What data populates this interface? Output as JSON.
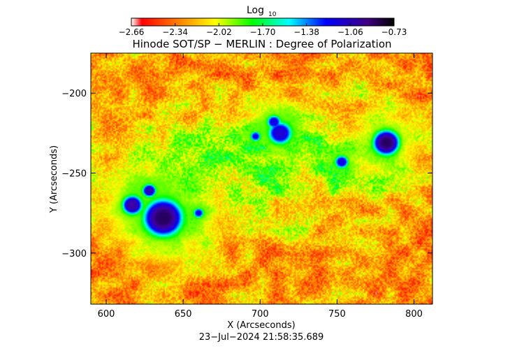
{
  "chart_data": {
    "type": "heatmap",
    "title": "Hinode SOT/SP − MERLIN : Degree of Polarization",
    "xlabel": "X (Arcseconds)",
    "ylabel": "Y (Arcseconds)",
    "timestamp": "23−Jul−2024 21:58:35.689",
    "xlim": [
      590,
      812
    ],
    "ylim": [
      -332,
      -175
    ],
    "x_ticks": [
      600,
      650,
      700,
      750,
      800
    ],
    "x_tick_labels": [
      "600",
      "650",
      "700",
      "750",
      "800"
    ],
    "y_ticks": [
      -200,
      -250,
      -300
    ],
    "y_tick_labels": [
      "−200",
      "−250",
      "−300"
    ],
    "colorbar": {
      "label": "Log",
      "label_subscript": "10",
      "range": [
        -2.66,
        -0.73
      ],
      "tick_labels": [
        "−2.66",
        "−2.34",
        "−2.02",
        "−1.70",
        "−1.38",
        "−1.06",
        "−0.73"
      ],
      "colormap": [
        "#ffffff",
        "#ff0000",
        "#ff8000",
        "#ffff00",
        "#00ff00",
        "#00ffff",
        "#0000ff",
        "#4000a0",
        "#000000"
      ]
    },
    "features": [
      {
        "name": "sunspot-large",
        "x": 637,
        "y": -278,
        "r": 12,
        "value": -0.85
      },
      {
        "name": "sunspot-west-pair",
        "x": 617,
        "y": -270,
        "r": 6,
        "value": -0.95
      },
      {
        "name": "sunspot-west-small",
        "x": 628,
        "y": -261,
        "r": 4,
        "value": -1.0
      },
      {
        "name": "sunspot-east",
        "x": 782,
        "y": -231,
        "r": 8,
        "value": -0.85
      },
      {
        "name": "pore-cluster-center",
        "x": 713,
        "y": -225,
        "r": 7,
        "value": -1.1
      },
      {
        "name": "pore-upper",
        "x": 709,
        "y": -218,
        "r": 4,
        "value": -1.15
      },
      {
        "name": "pore-mid",
        "x": 697,
        "y": -227,
        "r": 3,
        "value": -1.2
      },
      {
        "name": "pore-east-small",
        "x": 753,
        "y": -243,
        "r": 4,
        "value": -1.15
      },
      {
        "name": "pore-left",
        "x": 660,
        "y": -275,
        "r": 3,
        "value": -1.2
      }
    ]
  }
}
